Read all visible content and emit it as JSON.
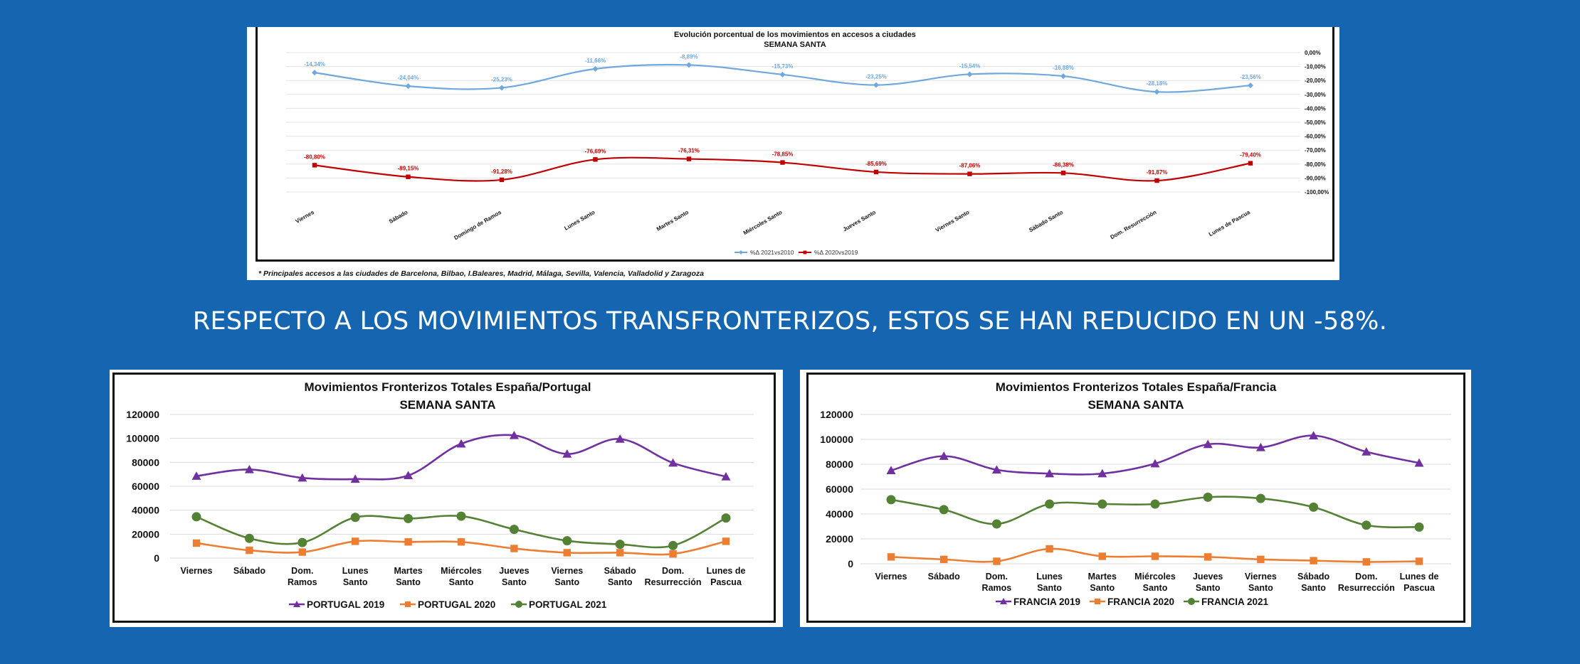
{
  "headline": "RESPECTO A LOS MOVIMIENTOS TRANSFRONTERIZOS, ESTOS SE HAN REDUCIDO EN UN -58%.",
  "chart_data": [
    {
      "type": "line",
      "title": "Evolución porcentual de los movimientos en accesos a ciudades",
      "subtitle": "SEMANA SANTA",
      "categories": [
        "Viernes",
        "Sábado",
        "Domingo de Ramos",
        "Lunes Santo",
        "Martes Santo",
        "Miércoles Santo",
        "Jueves Santo",
        "Viernes Santo",
        "Sábado Santo",
        "Dom. Resurrección",
        "Lunes de Pascua"
      ],
      "series": [
        {
          "name": "%Δ 2021vs2010",
          "color": "#6fa8dc",
          "marker": "diamond",
          "values": [
            -14.34,
            -24.04,
            -25.23,
            -11.66,
            -8.89,
            -15.73,
            -23.25,
            -15.54,
            -16.88,
            -28.18,
            -23.56
          ],
          "labels": [
            "-14,34%",
            "-24,04%",
            "-25,23%",
            "-11,66%",
            "-8,89%",
            "-15,73%",
            "-23,25%",
            "-15,54%",
            "-16,88%",
            "-28,18%",
            "-23,56%"
          ]
        },
        {
          "name": "%Δ 2020vs2019",
          "color": "#c00000",
          "marker": "square",
          "values": [
            -80.8,
            -89.15,
            -91.28,
            -76.69,
            -76.31,
            -78.85,
            -85.69,
            -87.06,
            -86.38,
            -91.87,
            -79.4
          ],
          "labels": [
            "-80,80%",
            "-89,15%",
            "-91,28%",
            "-76,69%",
            "-76,31%",
            "-78,85%",
            "-85,69%",
            "-87,06%",
            "-86,38%",
            "-91,87%",
            "-79,40%"
          ]
        }
      ],
      "ylim": [
        -100,
        0
      ],
      "yticks": [
        "0,00%",
        "-10,00%",
        "-20,00%",
        "-30,00%",
        "-40,00%",
        "-50,00%",
        "-60,00%",
        "-70,00%",
        "-80,00%",
        "-90,00%",
        "-100,00%"
      ],
      "grid": true,
      "legend": "bottom",
      "footnote": "* Principales accesos a las ciudades de Barcelona, Bilbao, I.Baleares, Madrid, Málaga, Sevilla, Valencia, Valladolid y Zaragoza"
    },
    {
      "type": "line",
      "title": "Movimientos Fronterizos Totales España/Portugal",
      "subtitle": "SEMANA SANTA",
      "categories": [
        "Viernes",
        "Sábado",
        "Dom. Ramos",
        "Lunes Santo",
        "Martes Santo",
        "Miércoles Santo",
        "Jueves Santo",
        "Viernes Santo",
        "Sábado Santo",
        "Dom. Resurrección",
        "Lunes de Pascua"
      ],
      "series": [
        {
          "name": "PORTUGAL 2019",
          "color": "#7030a0",
          "marker": "triangle",
          "values": [
            68500,
            74000,
            67000,
            66000,
            69000,
            95500,
            102500,
            87000,
            99500,
            79500,
            68000
          ]
        },
        {
          "name": "PORTUGAL 2020",
          "color": "#ed7d31",
          "marker": "square",
          "values": [
            12500,
            6500,
            5000,
            14000,
            13500,
            13500,
            8000,
            4500,
            4500,
            3500,
            14000
          ]
        },
        {
          "name": "PORTUGAL 2021",
          "color": "#548235",
          "marker": "circle",
          "values": [
            34500,
            16500,
            13000,
            34000,
            33000,
            35000,
            24000,
            14500,
            11500,
            10500,
            33500
          ]
        }
      ],
      "ylim": [
        0,
        120000
      ],
      "yticks": [
        "0",
        "20000",
        "40000",
        "60000",
        "80000",
        "100000",
        "120000"
      ],
      "grid": true,
      "legend": "bottom"
    },
    {
      "type": "line",
      "title": "Movimientos Fronterizos Totales España/Francia",
      "subtitle": "SEMANA SANTA",
      "categories": [
        "Viernes",
        "Sábado",
        "Dom. Ramos",
        "Lunes Santo",
        "Martes Santo",
        "Miércoles Santo",
        "Jueves Santo",
        "Viernes Santo",
        "Sábado Santo",
        "Dom. Resurrección",
        "Lunes de Pascua"
      ],
      "series": [
        {
          "name": "FRANCIA 2019",
          "color": "#7030a0",
          "marker": "triangle",
          "values": [
            75000,
            86500,
            75500,
            72500,
            72500,
            80500,
            96000,
            93500,
            103000,
            90000,
            81000
          ]
        },
        {
          "name": "FRANCIA 2020",
          "color": "#ed7d31",
          "marker": "square",
          "values": [
            5500,
            3500,
            2000,
            12000,
            6000,
            6000,
            5500,
            3500,
            2500,
            1500,
            2000
          ]
        },
        {
          "name": "FRANCIA 2021",
          "color": "#548235",
          "marker": "circle",
          "values": [
            51500,
            43500,
            32000,
            48000,
            48000,
            48000,
            53500,
            52500,
            45500,
            31000,
            29500
          ]
        }
      ],
      "ylim": [
        0,
        120000
      ],
      "yticks": [
        "0",
        "20000",
        "40000",
        "60000",
        "80000",
        "100000",
        "120000"
      ],
      "grid": true,
      "legend": "bottom"
    }
  ]
}
